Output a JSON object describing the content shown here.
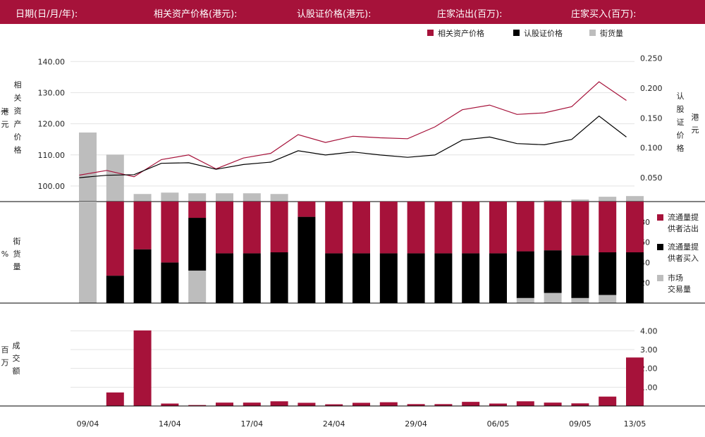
{
  "header": {
    "fields": [
      "日期(日/月/年):",
      "相关资产价格(港元):",
      "认股证价格(港元):",
      "庄家沽出(百万):",
      "庄家买入(百万):"
    ]
  },
  "colors": {
    "accent": "#a6123a",
    "black": "#000000",
    "gray": "#bdbdbd"
  },
  "chart_data": [
    {
      "type": "line",
      "legend": [
        "相关资产价格",
        "认股证价格",
        "街货量"
      ],
      "legend_position": "top-right",
      "y_left_label": "相关资产价格(港元)",
      "y_left_ticks": [
        "100.00",
        "110.00",
        "120.00",
        "130.00",
        "140.00"
      ],
      "y_left_lim": [
        95,
        143
      ],
      "y_right_label": "认股证价格(港元)",
      "y_right_ticks": [
        "0.050",
        "0.100",
        "0.150",
        "0.200",
        "0.250"
      ],
      "y_right_lim": [
        0.01,
        0.26
      ],
      "series": [
        {
          "name": "相关资产价格",
          "values": [
            103.5,
            105,
            103,
            108.5,
            110,
            105.5,
            109,
            110.5,
            116.5,
            114,
            116,
            115.5,
            115.2,
            119,
            124.5,
            126,
            123,
            123.5,
            125.5,
            133.5,
            127.5
          ]
        },
        {
          "name": "认股证价格",
          "values": [
            0.05,
            0.054,
            0.055,
            0.074,
            0.075,
            0.064,
            0.072,
            0.076,
            0.095,
            0.088,
            0.093,
            0.088,
            0.084,
            0.088,
            0.113,
            0.118,
            0.107,
            0.105,
            0.114,
            0.153,
            0.118
          ]
        }
      ],
      "outstanding_bars": [
        100,
        68,
        11,
        13,
        12,
        12,
        12,
        11,
        0,
        0,
        0,
        0,
        0,
        0,
        0,
        0,
        1,
        2,
        3,
        7,
        8
      ]
    },
    {
      "type": "bar",
      "ylabel": "街货量(%)",
      "y_ticks": [
        "20",
        "40",
        "60",
        "80"
      ],
      "ylim": [
        0,
        100
      ],
      "legend": [
        "流通量提供者沽出",
        "流通量提供者买入",
        "市场交易量"
      ],
      "legend_position": "right",
      "series": [
        {
          "name": "流通量提供者沽出",
          "values": [
            0,
            73,
            47,
            60,
            16,
            51,
            51,
            50,
            15,
            51,
            51,
            51,
            51,
            51,
            51,
            51,
            49,
            48,
            53,
            50,
            50
          ]
        },
        {
          "name": "流通量提供者买入",
          "values": [
            0,
            27,
            53,
            40,
            52,
            49,
            49,
            50,
            85,
            49,
            49,
            49,
            49,
            49,
            49,
            49,
            46,
            42,
            42,
            42,
            50
          ]
        },
        {
          "name": "市场交易量",
          "values": [
            100,
            0,
            0,
            0,
            32,
            0,
            0,
            0,
            0,
            0,
            0,
            0,
            0,
            0,
            0,
            0,
            5,
            10,
            5,
            8,
            0
          ]
        }
      ]
    },
    {
      "type": "bar",
      "ylabel": "成交额(百万)",
      "y_ticks": [
        "1.00",
        "2.00",
        "3.00",
        "4.00"
      ],
      "ylim": [
        0,
        4.2
      ],
      "values": [
        0,
        0.72,
        4.02,
        0.13,
        0.05,
        0.18,
        0.18,
        0.25,
        0.17,
        0.09,
        0.17,
        0.2,
        0.1,
        0.1,
        0.22,
        0.13,
        0.25,
        0.18,
        0.14,
        0.5,
        2.58
      ]
    }
  ],
  "x_labels": [
    {
      "index": 0,
      "label": "09/04"
    },
    {
      "index": 3,
      "label": "14/04"
    },
    {
      "index": 6,
      "label": "17/04"
    },
    {
      "index": 9,
      "label": "24/04"
    },
    {
      "index": 12,
      "label": "29/04"
    },
    {
      "index": 15,
      "label": "06/05"
    },
    {
      "index": 18,
      "label": "09/05"
    },
    {
      "index": 20,
      "label": "13/05"
    }
  ],
  "panel_labels": {
    "top_left": [
      "相",
      "关",
      "资",
      "产",
      "价",
      "格"
    ],
    "top_left_unit": [
      "港",
      "元"
    ],
    "top_right": [
      "认",
      "股",
      "证",
      "价",
      "格"
    ],
    "top_right_unit": [
      "港",
      "元"
    ],
    "mid": [
      "街",
      "货",
      "量"
    ],
    "mid_unit": "%",
    "bot": [
      "成",
      "交",
      "额"
    ],
    "bot_unit": [
      "百",
      "万"
    ]
  },
  "legend_mid_lines": [
    [
      "流通量提",
      "供者沽出"
    ],
    [
      "流通量提",
      "供者买入"
    ],
    [
      "市场",
      "交易量"
    ]
  ]
}
